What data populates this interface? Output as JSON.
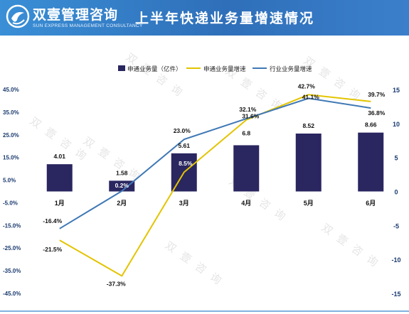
{
  "header": {
    "logo_cn": "双壹管理咨询",
    "logo_en": "SUN EXPRESS MANAGEMENT CONSULTANCY",
    "title": "上半年快递业务量增速情况"
  },
  "watermark": "双 壹 咨 询",
  "colors": {
    "header_start": "#3a8fd6",
    "header_end": "#2f6fb9",
    "bar": "#2a2660",
    "line_yto": "#e3c400",
    "line_industry": "#3f78b5"
  },
  "chart_data": {
    "type": "bar",
    "categories": [
      "1月",
      "2月",
      "3月",
      "4月",
      "5月",
      "6月"
    ],
    "series": [
      {
        "name": "申通业务量（亿件）",
        "kind": "bar",
        "axis": "right",
        "values": [
          4.01,
          1.58,
          5.61,
          6.8,
          8.52,
          8.66
        ],
        "labels": [
          "4.01",
          "1.58",
          "5.61",
          "6.8",
          "8.52",
          "8.66"
        ]
      },
      {
        "name": "申通业务量增速",
        "kind": "line",
        "axis": "left",
        "values": [
          -21.5,
          -37.3,
          8.5,
          31.6,
          42.7,
          39.7
        ],
        "labels": [
          "-21.5%",
          "-37.3%",
          "8.5%",
          "31.6%",
          "42.7%",
          "39.7%"
        ]
      },
      {
        "name": "行业业务量增速",
        "kind": "line",
        "axis": "left",
        "values": [
          -16.4,
          0.2,
          23.0,
          32.1,
          41.1,
          36.8
        ],
        "labels": [
          "-16.4%",
          "0.2%",
          "23.0%",
          "32.1%",
          "41.1%",
          "36.8%"
        ]
      }
    ],
    "left_axis": {
      "min": -45,
      "max": 45,
      "ticks": [
        45,
        35,
        25,
        15,
        5,
        -5,
        -15,
        -25,
        -35,
        -45
      ],
      "tick_labels": [
        "45.0%",
        "35.0%",
        "25.0%",
        "15.0%",
        "5.0%",
        "-5.0%",
        "-15.0%",
        "-25.0%",
        "-35.0%",
        "-45.0%"
      ]
    },
    "right_axis": {
      "min": -15,
      "max": 15,
      "ticks": [
        15,
        10,
        5,
        0,
        -5,
        -10,
        -15
      ],
      "tick_labels": [
        "15",
        "10",
        "5",
        "0",
        "-5",
        "-10",
        "-15"
      ]
    },
    "legend_position": "top",
    "grid": false
  }
}
